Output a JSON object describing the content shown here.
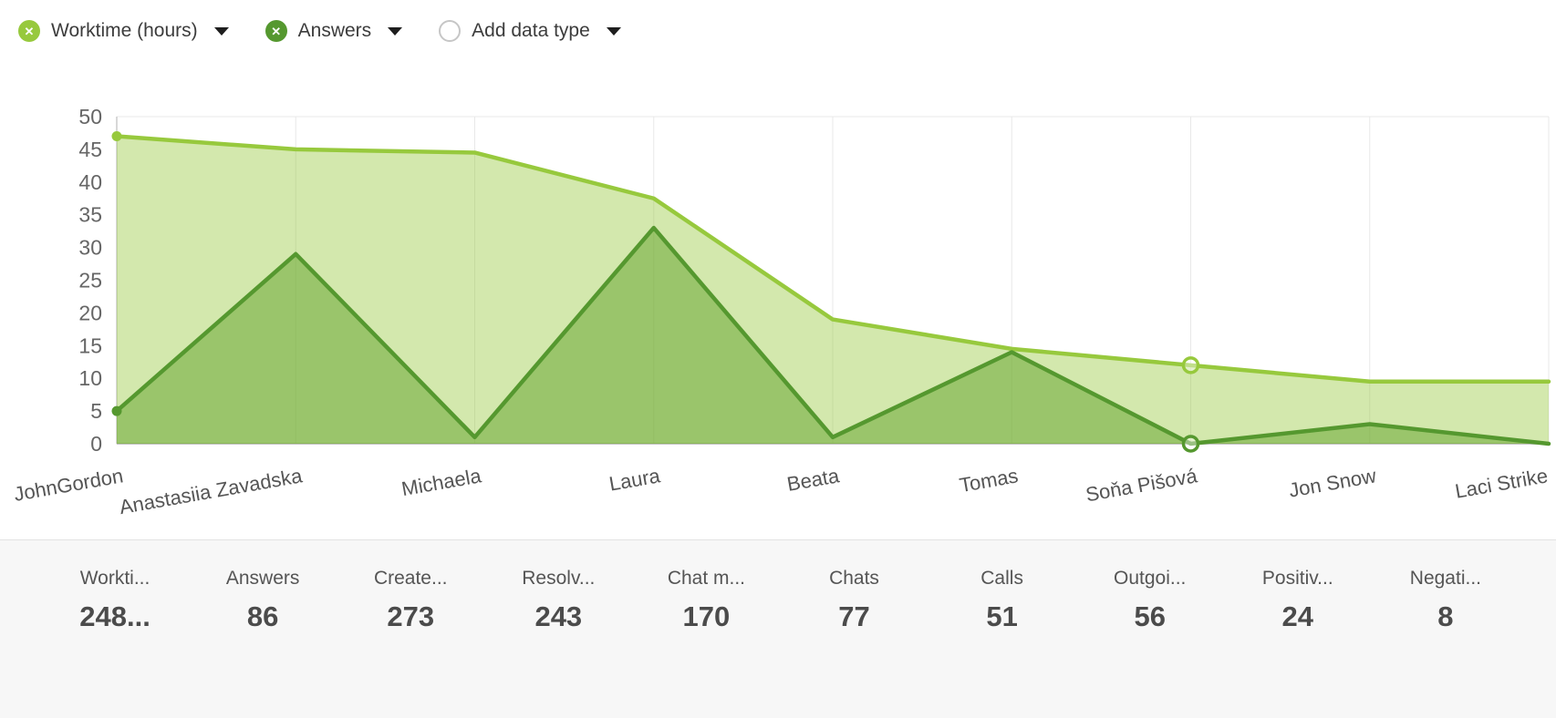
{
  "toolbar": {
    "chips": [
      {
        "label": "Worktime (hours)",
        "color": "#97c93d",
        "icon": "remove-series"
      },
      {
        "label": "Answers",
        "color": "#55982f",
        "icon": "remove-series"
      },
      {
        "label": "Add data type",
        "color": "",
        "icon": "add-series"
      }
    ]
  },
  "chart_data": {
    "type": "area",
    "title": "",
    "xlabel": "",
    "ylabel": "",
    "categories": [
      "JohnGordon",
      "Anastasiia Zavadska",
      "Michaela",
      "Laura",
      "Beata",
      "Tomas",
      "Soňa Pišová",
      "Jon Snow",
      "Laci Strike"
    ],
    "series": [
      {
        "name": "Worktime (hours)",
        "color": "#97c93d",
        "fill": "rgba(150, 200, 60, 0.42)",
        "values": [
          47,
          45,
          44.5,
          37.5,
          19,
          14.5,
          12,
          9.5,
          9.5
        ],
        "dot_indices": [
          0
        ],
        "ring_indices": [
          6
        ]
      },
      {
        "name": "Answers",
        "color": "#55982f",
        "fill": "rgba(108, 168, 52, 0.55)",
        "values": [
          5,
          29,
          1,
          33,
          1,
          14,
          0,
          3,
          0
        ],
        "dot_indices": [
          0
        ],
        "ring_indices": [
          6
        ]
      }
    ],
    "ylim": [
      0,
      50
    ],
    "yticks": [
      0,
      5,
      10,
      15,
      20,
      25,
      30,
      35,
      40,
      45,
      50
    ],
    "grid": "vertical",
    "legend_position": "top-left chips"
  },
  "summary": {
    "items": [
      {
        "label": "Workti...",
        "value": "248..."
      },
      {
        "label": "Answers",
        "value": "86"
      },
      {
        "label": "Create...",
        "value": "273"
      },
      {
        "label": "Resolv...",
        "value": "243"
      },
      {
        "label": "Chat m...",
        "value": "170"
      },
      {
        "label": "Chats",
        "value": "77"
      },
      {
        "label": "Calls",
        "value": "51"
      },
      {
        "label": "Outgoi...",
        "value": "56"
      },
      {
        "label": "Positiv...",
        "value": "24"
      },
      {
        "label": "Negati...",
        "value": "8"
      }
    ]
  }
}
